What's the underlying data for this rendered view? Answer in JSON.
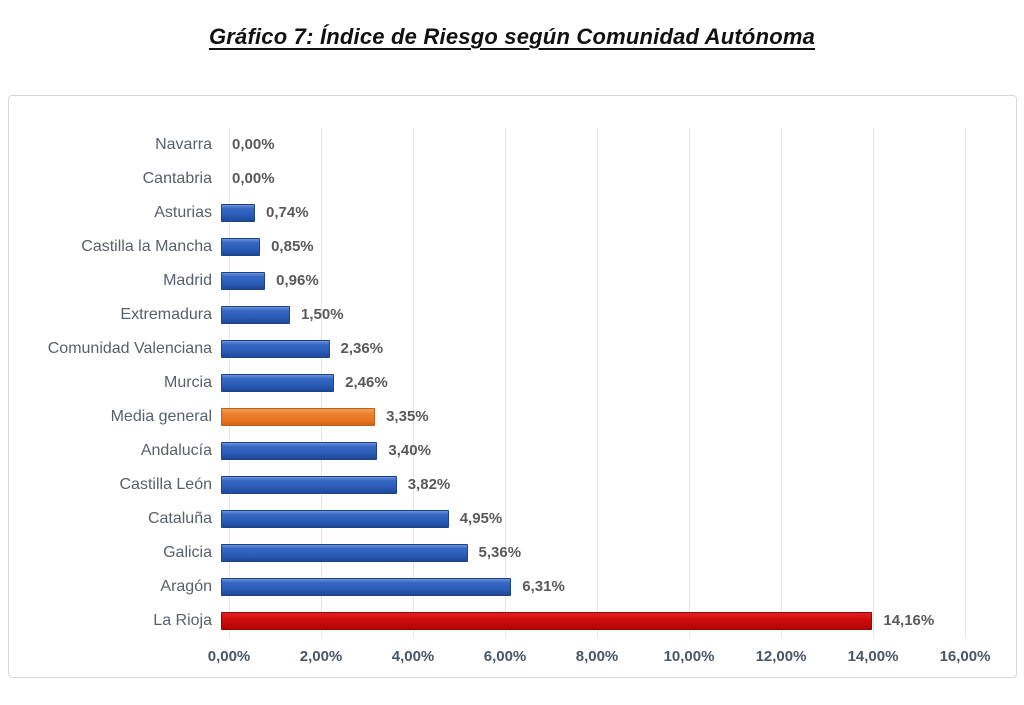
{
  "title": "Gráfico 7: Índice de Riesgo según Comunidad Autónoma",
  "chart_data": {
    "type": "bar",
    "orientation": "horizontal",
    "title": "Gráfico 7: Índice de Riesgo según Comunidad Autónoma",
    "categories": [
      "Navarra",
      "Cantabria",
      "Asturias",
      "Castilla la Mancha",
      "Madrid",
      "Extremadura",
      "Comunidad Valenciana",
      "Murcia",
      "Media general",
      "Andalucía",
      "Castilla León",
      "Cataluña",
      "Galicia",
      "Aragón",
      "La Rioja"
    ],
    "values": [
      0.0,
      0.0,
      0.74,
      0.85,
      0.96,
      1.5,
      2.36,
      2.46,
      3.35,
      3.4,
      3.82,
      4.95,
      5.36,
      6.31,
      14.16
    ],
    "data_labels": [
      "0,00%",
      "0,00%",
      "0,74%",
      "0,85%",
      "0,96%",
      "1,50%",
      "2,36%",
      "2,46%",
      "3,35%",
      "3,40%",
      "3,82%",
      "4,95%",
      "5,36%",
      "6,31%",
      "14,16%"
    ],
    "bar_color_keys": [
      "blue",
      "blue",
      "blue",
      "blue",
      "blue",
      "blue",
      "blue",
      "blue",
      "orange",
      "blue",
      "blue",
      "blue",
      "blue",
      "blue",
      "red"
    ],
    "colors": {
      "blue": "#2b5cb8",
      "orange": "#e8731f",
      "red": "#c00000",
      "gridline": "#e4e4e4",
      "text": "#595959"
    },
    "x_ticks": [
      "0,00%",
      "2,00%",
      "4,00%",
      "6,00%",
      "8,00%",
      "10,00%",
      "12,00%",
      "14,00%",
      "16,00%"
    ],
    "xlim": [
      0,
      16
    ],
    "xlabel": "",
    "ylabel": "",
    "grid": true,
    "legend": false
  }
}
